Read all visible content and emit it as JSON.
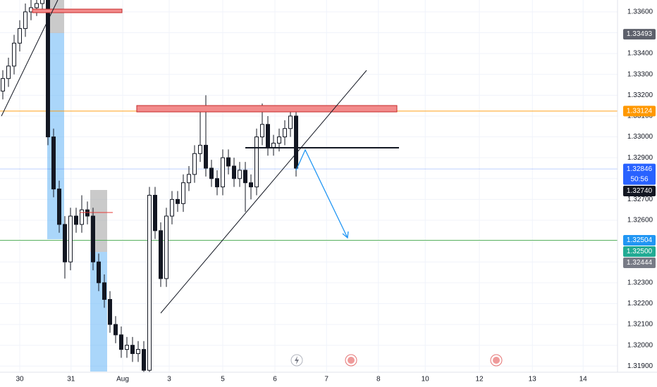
{
  "chart_data": {
    "type": "candlestick",
    "xlim": [
      -0.5,
      109
    ],
    "xticks": [
      {
        "value": 3,
        "label": "30"
      },
      {
        "value": 12.1,
        "label": "31"
      },
      {
        "value": 21.25,
        "label": "Aug"
      },
      {
        "value": 29.5,
        "label": "3"
      },
      {
        "value": 39,
        "label": "5"
      },
      {
        "value": 48.25,
        "label": "6"
      },
      {
        "value": 57.4,
        "label": "7"
      },
      {
        "value": 66.6,
        "label": "8"
      },
      {
        "value": 74.9,
        "label": "10"
      },
      {
        "value": 84.5,
        "label": "12"
      },
      {
        "value": 93.9,
        "label": "13"
      },
      {
        "value": 102.9,
        "label": "14"
      }
    ],
    "ylim": [
      1.31874,
      1.33657
    ],
    "yticks": [
      {
        "value": 1.319,
        "label": "1.31900"
      },
      {
        "value": 1.32,
        "label": "1.32000"
      },
      {
        "value": 1.321,
        "label": "1.32100"
      },
      {
        "value": 1.322,
        "label": "1.32200"
      },
      {
        "value": 1.323,
        "label": "1.32300"
      },
      {
        "value": 1.324,
        "label": "1.32400"
      },
      {
        "value": 1.325,
        "label": "1.32500"
      },
      {
        "value": 1.326,
        "label": "1.32600"
      },
      {
        "value": 1.327,
        "label": "1.32700"
      },
      {
        "value": 1.328,
        "label": "1.32800"
      },
      {
        "value": 1.329,
        "label": "1.32900"
      },
      {
        "value": 1.33,
        "label": "1.33000"
      },
      {
        "value": 1.331,
        "label": "1.33100"
      },
      {
        "value": 1.332,
        "label": "1.33200"
      },
      {
        "value": 1.333,
        "label": "1.33300"
      },
      {
        "value": 1.334,
        "label": "1.33400"
      },
      {
        "value": 1.335,
        "label": "1.33500"
      },
      {
        "value": 1.336,
        "label": "1.33600"
      }
    ],
    "grid": true,
    "up_color": "#ffffff",
    "down_color": "#131722",
    "open": [
      1.3322,
      1.3328,
      1.3334,
      1.3345,
      1.3352,
      1.336,
      1.3362,
      1.3364,
      1.3366,
      1.33,
      1.3275,
      1.3258,
      1.324,
      1.3262,
      1.3258,
      1.3265,
      1.3262,
      1.324,
      1.323,
      1.3222,
      1.321,
      1.3205,
      1.3198,
      1.32,
      1.3196,
      1.3198,
      1.3188,
      1.3272,
      1.3255,
      1.3232,
      1.3262,
      1.327,
      1.3268,
      1.3278,
      1.3282,
      1.3292,
      1.3296,
      1.3285,
      1.328,
      1.3276,
      1.329,
      1.3286,
      1.328,
      1.3284,
      1.3278,
      1.3276,
      1.33,
      1.3306,
      1.3295,
      1.3297,
      1.33,
      1.3304,
      1.331
    ],
    "high": [
      1.3332,
      1.3338,
      1.3349,
      1.3356,
      1.3364,
      1.3366,
      1.3368,
      1.337,
      1.3368,
      1.3304,
      1.3279,
      1.3262,
      1.3266,
      1.3266,
      1.3272,
      1.3269,
      1.3266,
      1.3244,
      1.3234,
      1.3226,
      1.3214,
      1.3209,
      1.3204,
      1.3204,
      1.3202,
      1.3202,
      1.3276,
      1.3276,
      1.3259,
      1.3266,
      1.3274,
      1.3274,
      1.3282,
      1.3286,
      1.3296,
      1.3312,
      1.332,
      1.3289,
      1.3284,
      1.3294,
      1.3294,
      1.329,
      1.3288,
      1.3288,
      1.3282,
      1.3304,
      1.3316,
      1.331,
      1.3301,
      1.3304,
      1.3308,
      1.3315,
      1.3312
    ],
    "low": [
      1.3318,
      1.3324,
      1.333,
      1.3341,
      1.3348,
      1.3356,
      1.3358,
      1.336,
      1.3296,
      1.3271,
      1.3254,
      1.3232,
      1.3236,
      1.3254,
      1.3254,
      1.3258,
      1.3236,
      1.3226,
      1.3218,
      1.3206,
      1.3201,
      1.3194,
      1.3194,
      1.3192,
      1.3192,
      1.3184,
      1.3186,
      1.3251,
      1.3228,
      1.3228,
      1.3258,
      1.3264,
      1.3264,
      1.3274,
      1.3278,
      1.3288,
      1.3281,
      1.3276,
      1.3272,
      1.3272,
      1.3282,
      1.3276,
      1.3276,
      1.3264,
      1.327,
      1.3272,
      1.3296,
      1.3291,
      1.3291,
      1.3293,
      1.3296,
      1.33,
      1.3281
    ],
    "close": [
      1.3328,
      1.3334,
      1.3345,
      1.3352,
      1.336,
      1.3362,
      1.3364,
      1.3366,
      1.33,
      1.3275,
      1.3258,
      1.324,
      1.3262,
      1.3258,
      1.3265,
      1.3262,
      1.324,
      1.323,
      1.3222,
      1.321,
      1.3205,
      1.3198,
      1.32,
      1.3196,
      1.3198,
      1.3188,
      1.3272,
      1.3255,
      1.3232,
      1.3262,
      1.327,
      1.3268,
      1.3278,
      1.3282,
      1.3292,
      1.3296,
      1.3285,
      1.328,
      1.3276,
      1.329,
      1.3286,
      1.328,
      1.3284,
      1.3278,
      1.3276,
      1.33,
      1.3306,
      1.3295,
      1.3297,
      1.33,
      1.3304,
      1.331,
      1.3285
    ],
    "price_markers": [
      {
        "value": 1.33493,
        "color": "#5d606b"
      },
      {
        "value": 1.33124,
        "color": "#ff9800",
        "line": true
      },
      {
        "value": 1.32846,
        "color": "#2962ff",
        "line": true,
        "countdown": "50:56"
      },
      {
        "value": 1.3274,
        "label": "1.32740",
        "color": "#131722"
      },
      {
        "value": 1.32504,
        "color": "#2196f3",
        "line": true,
        "line_color": "#4caf50"
      },
      {
        "value": 1.325,
        "label": "1.32500",
        "color": "#22ab94"
      },
      {
        "value": 1.32444,
        "color": "#787b86"
      }
    ]
  }
}
